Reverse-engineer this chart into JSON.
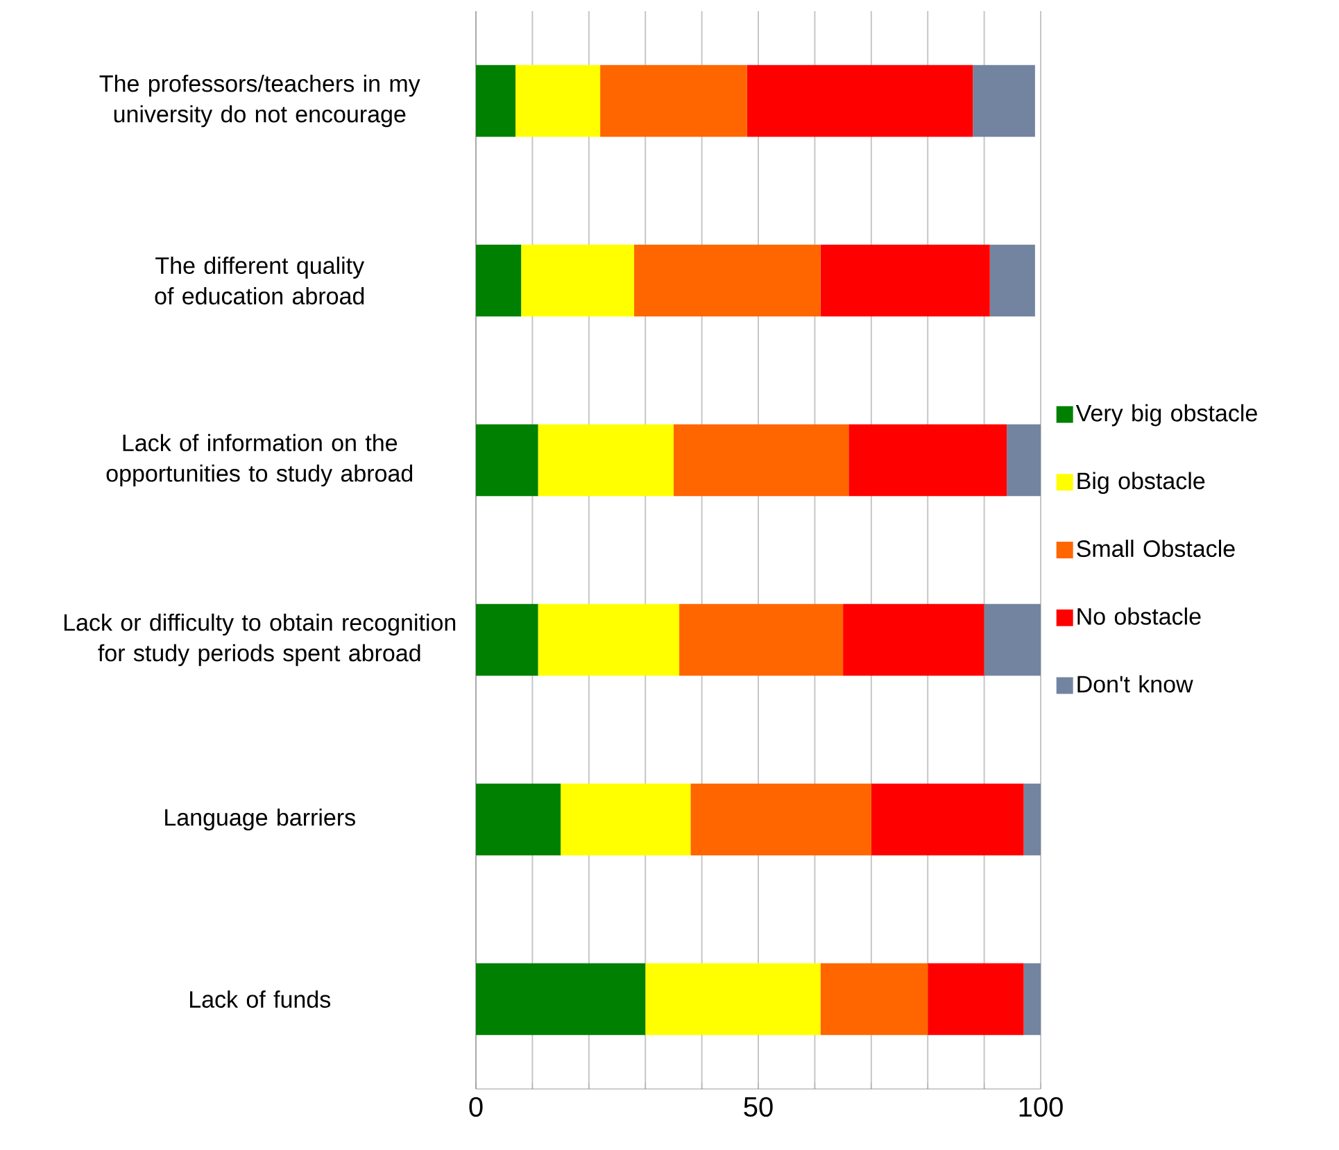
{
  "chart_data": {
    "type": "bar",
    "orientation": "horizontal",
    "stacked": true,
    "categories": [
      "The professors/teachers in my university do not encourage",
      "The different quality of education abroad",
      "Lack of information on the opportunities to study abroad",
      "Lack or difficulty to obtain recognition for study periods spent abroad",
      "Language barriers",
      "Lack of funds"
    ],
    "series": [
      {
        "name": "Very big obstacle",
        "color": "#008000",
        "values": [
          7,
          8,
          11,
          11,
          15,
          30
        ]
      },
      {
        "name": "Big obstacle",
        "color": "#ffff00",
        "values": [
          15,
          20,
          24,
          25,
          23,
          31
        ]
      },
      {
        "name": "Small Obstacle",
        "color": "#ff6600",
        "values": [
          26,
          33,
          31,
          29,
          32,
          19
        ]
      },
      {
        "name": "No obstacle",
        "color": "#ff0000",
        "values": [
          40,
          30,
          28,
          25,
          27,
          17
        ]
      },
      {
        "name": "Don't know",
        "color": "#7384a0",
        "values": [
          11,
          8,
          6,
          10,
          3,
          3
        ]
      }
    ],
    "xlim": [
      0,
      100
    ],
    "xticks": [
      0,
      {
        "value": 10,
        "label": null
      },
      {
        "value": 20,
        "label": null
      },
      {
        "value": 30,
        "label": null
      },
      {
        "value": 40,
        "label": null
      },
      50,
      {
        "value": 60,
        "label": null
      },
      {
        "value": 70,
        "label": null
      },
      {
        "value": 80,
        "label": null
      },
      {
        "value": 90,
        "label": null
      },
      100
    ],
    "grid": "x",
    "legend": "right"
  }
}
